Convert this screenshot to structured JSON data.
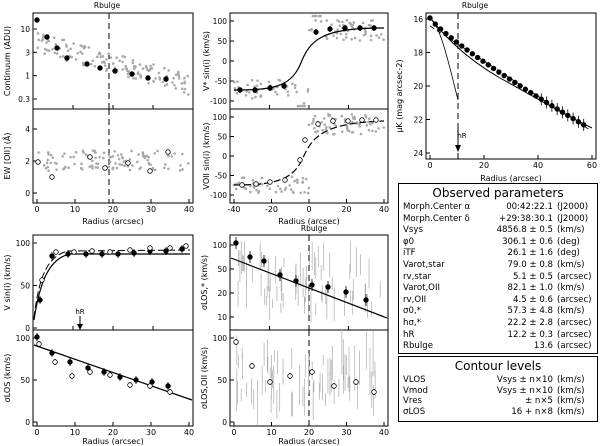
{
  "figure": {
    "panels": {
      "continuum": {
        "ylabel": "Continuum (ADU)",
        "rbulge_label": "Rbulge",
        "ytick_labels": [
          "10",
          "3",
          "1",
          "0.3"
        ]
      },
      "ew": {
        "ylabel": "EW [OII] (Å)",
        "ytick_labels": [
          "4",
          "2",
          "0"
        ],
        "xtick_labels": [
          "0",
          "10",
          "20",
          "30",
          "40"
        ],
        "xlabel": "Radius (arcsec)"
      },
      "vstar": {
        "ylabel": "V* sin(i) (km/s)",
        "rbulge_label": "Rbulge",
        "ytick_labels": [
          "100",
          "50",
          "0",
          "-50",
          "-100"
        ]
      },
      "vgas": {
        "ylabel": "VOII sin(i) (km/s)",
        "ytick_labels": [
          "100",
          "50",
          "0",
          "-50",
          "-100"
        ],
        "xtick_labels": [
          "-40",
          "-20",
          "0",
          "20",
          "40"
        ],
        "xlabel": "Radius (arcsec)"
      },
      "sb": {
        "ylabel": "μK (mag arcsec-2)",
        "rbulge_label": "Rbulge",
        "hr_label": "hR",
        "ytick_labels": [
          "16",
          "18",
          "20",
          "22",
          "24"
        ],
        "xtick_labels": [
          "0",
          "20",
          "40",
          "60"
        ],
        "xlabel": "Radius (arcsec)"
      },
      "vrot": {
        "ylabel": "V sin(i) (km/s)",
        "hr_label": "hR",
        "ytick_labels": [
          "100",
          "50",
          "0"
        ]
      },
      "siglos": {
        "ylabel": "σLOS (km/s)",
        "ytick_labels": [
          "100",
          "50",
          "0"
        ],
        "xtick_labels": [
          "0",
          "10",
          "20",
          "30",
          "40"
        ],
        "xlabel": "Radius (arcsec)"
      },
      "sigstar": {
        "ylabel": "σLOS,* (km/s)",
        "rbulge_label": "Rbulge",
        "ytick_labels": [
          "100",
          "50",
          "20",
          "10"
        ]
      },
      "siggas": {
        "ylabel": "σLOS,OII (km/s)",
        "ytick_labels": [
          "100",
          "50",
          "0"
        ],
        "xtick_labels": [
          "0",
          "10",
          "20",
          "30",
          "40"
        ],
        "xlabel": "Radius (arcsec)"
      }
    }
  },
  "observed": {
    "title": "Observed parameters",
    "rows": [
      {
        "name": "Morph.Center α",
        "value": "00:42:22.1",
        "unit": "(J2000)"
      },
      {
        "name": "Morph.Center δ",
        "value": "+29:38:30.1",
        "unit": "(J2000)"
      },
      {
        "name": "Vsys",
        "value": "4856.8 ± 0.5",
        "unit": "(km/s)"
      },
      {
        "name": "φ0",
        "value": "306.1 ± 0.6",
        "unit": "(deg)"
      },
      {
        "name": "iTF",
        "value": "26.1 ± 1.6",
        "unit": "(deg)"
      },
      {
        "name": "Varot,star",
        "value": "79.0 ± 0.8",
        "unit": "(km/s)"
      },
      {
        "name": "rv,star",
        "value": "5.1 ± 0.5",
        "unit": "(arcsec)"
      },
      {
        "name": "Varot,OII",
        "value": "82.1 ± 1.0",
        "unit": "(km/s)"
      },
      {
        "name": "rv,OII",
        "value": "4.5 ± 0.6",
        "unit": "(arcsec)"
      },
      {
        "name": "σ0,*",
        "value": "57.3 ± 4.8",
        "unit": "(km/s)"
      },
      {
        "name": "hσ,*",
        "value": "22.2 ± 2.8",
        "unit": "(arcsec)"
      },
      {
        "name": "hR",
        "value": "12.2 ± 0.3",
        "unit": "(arcsec)"
      },
      {
        "name": "Rbulge",
        "value": "13.6",
        "unit": "(arcsec)"
      }
    ]
  },
  "contours": {
    "title": "Contour levels",
    "rows": [
      {
        "name": "VLOS",
        "value": "Vsys ± n×10",
        "unit": "(km/s)"
      },
      {
        "name": "Vmod",
        "value": "Vsys ± n×10",
        "unit": "(km/s)"
      },
      {
        "name": "Vres",
        "value": "± n×5",
        "unit": "(km/s)"
      },
      {
        "name": "σLOS",
        "value": "16 + n×8",
        "unit": "(km/s)"
      }
    ]
  }
}
